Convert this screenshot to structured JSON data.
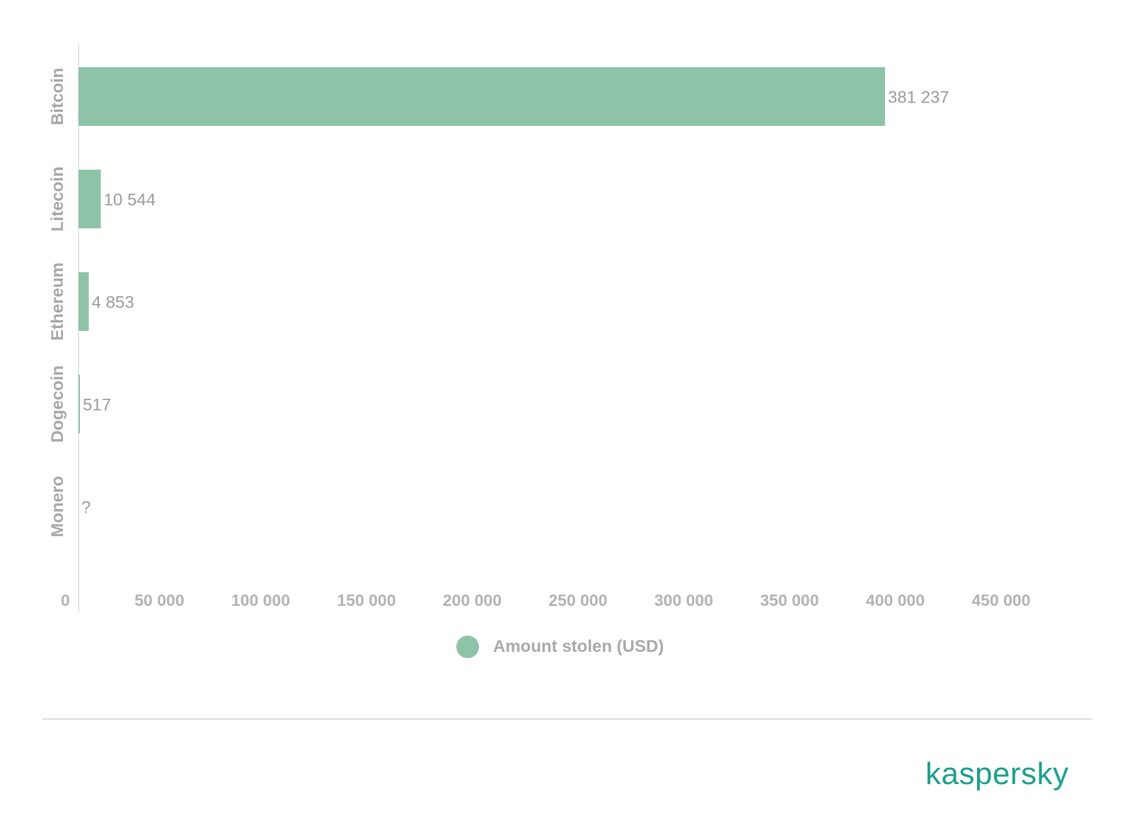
{
  "chart_data": {
    "type": "bar",
    "orientation": "horizontal",
    "categories": [
      "Bitcoin",
      "Litecoin",
      "Ethereum",
      "Dogecoin",
      "Monero"
    ],
    "series": [
      {
        "name": "Amount stolen (USD)",
        "values": [
          381237,
          10544,
          4853,
          517,
          null
        ],
        "color": "#8fc3a7"
      }
    ],
    "data_labels": [
      "381 237",
      "10 544",
      "4 853",
      "517",
      "?"
    ],
    "x_ticks": [
      0,
      50000,
      100000,
      150000,
      200000,
      250000,
      300000,
      350000,
      400000,
      450000
    ],
    "x_tick_labels": [
      "0",
      "50 000",
      "100 000",
      "150 000",
      "200 000",
      "250 000",
      "300 000",
      "350 000",
      "400 000",
      "450 000"
    ],
    "xlim": [
      0,
      450000
    ],
    "grid": false,
    "legend_position": "bottom-center"
  },
  "legend": {
    "label": "Amount stolen (USD)"
  },
  "brand": {
    "name": "kaspersky",
    "color": "#1b9f8c"
  }
}
